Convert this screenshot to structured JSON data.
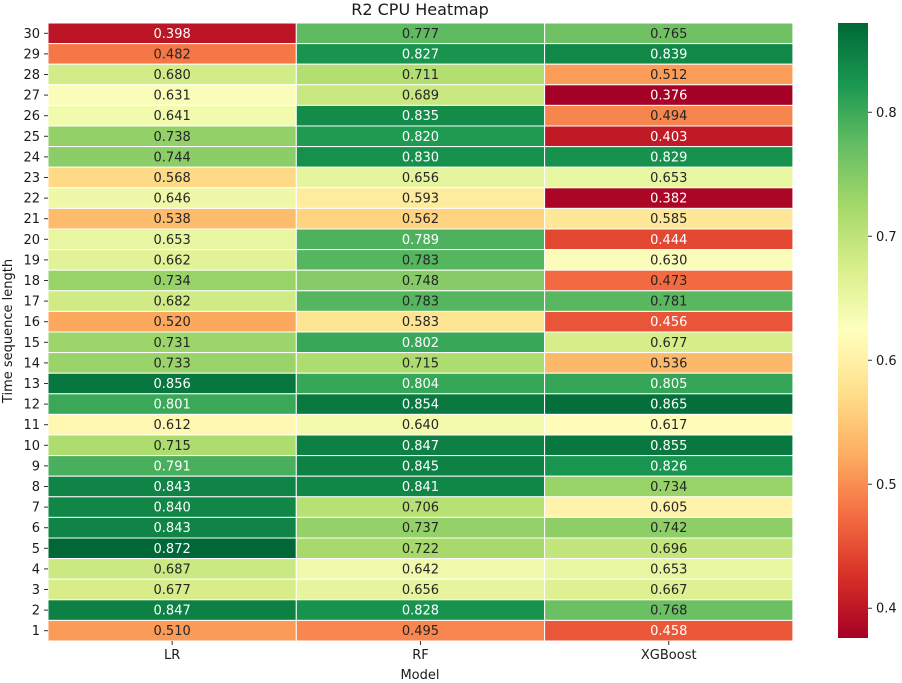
{
  "chart_data": {
    "type": "heatmap",
    "title": "R2 CPU Heatmap",
    "xlabel": "Model",
    "ylabel": "Time sequence length",
    "columns": [
      "LR",
      "RF",
      "XGBoost"
    ],
    "rows": [
      "30",
      "29",
      "28",
      "27",
      "26",
      "25",
      "24",
      "23",
      "22",
      "21",
      "20",
      "19",
      "18",
      "17",
      "16",
      "15",
      "14",
      "13",
      "12",
      "11",
      "10",
      "9",
      "8",
      "7",
      "6",
      "5",
      "4",
      "3",
      "2",
      "1"
    ],
    "values": [
      [
        0.398,
        0.777,
        0.765
      ],
      [
        0.482,
        0.827,
        0.839
      ],
      [
        0.68,
        0.711,
        0.512
      ],
      [
        0.631,
        0.689,
        0.376
      ],
      [
        0.641,
        0.835,
        0.494
      ],
      [
        0.738,
        0.82,
        0.403
      ],
      [
        0.744,
        0.83,
        0.829
      ],
      [
        0.568,
        0.656,
        0.653
      ],
      [
        0.646,
        0.593,
        0.382
      ],
      [
        0.538,
        0.562,
        0.585
      ],
      [
        0.653,
        0.789,
        0.444
      ],
      [
        0.662,
        0.783,
        0.63
      ],
      [
        0.734,
        0.748,
        0.473
      ],
      [
        0.682,
        0.783,
        0.781
      ],
      [
        0.52,
        0.583,
        0.456
      ],
      [
        0.731,
        0.802,
        0.677
      ],
      [
        0.733,
        0.715,
        0.536
      ],
      [
        0.856,
        0.804,
        0.805
      ],
      [
        0.801,
        0.854,
        0.865
      ],
      [
        0.612,
        0.64,
        0.617
      ],
      [
        0.715,
        0.847,
        0.855
      ],
      [
        0.791,
        0.845,
        0.826
      ],
      [
        0.843,
        0.841,
        0.734
      ],
      [
        0.84,
        0.706,
        0.605
      ],
      [
        0.843,
        0.737,
        0.742
      ],
      [
        0.872,
        0.722,
        0.696
      ],
      [
        0.687,
        0.642,
        0.653
      ],
      [
        0.677,
        0.656,
        0.667
      ],
      [
        0.847,
        0.828,
        0.768
      ],
      [
        0.51,
        0.495,
        0.458
      ]
    ],
    "value_format": "3 decimals",
    "colormap": "RdYlGn",
    "vmin": 0.376,
    "vmax": 0.872,
    "colorbar_ticks": [
      0.4,
      0.5,
      0.6,
      0.7,
      0.8
    ],
    "colorbar_tick_labels": [
      "0.4",
      "0.5",
      "0.6",
      "0.7",
      "0.8"
    ],
    "grid": false,
    "cell_borders": "white",
    "colorbar_position": "right"
  }
}
